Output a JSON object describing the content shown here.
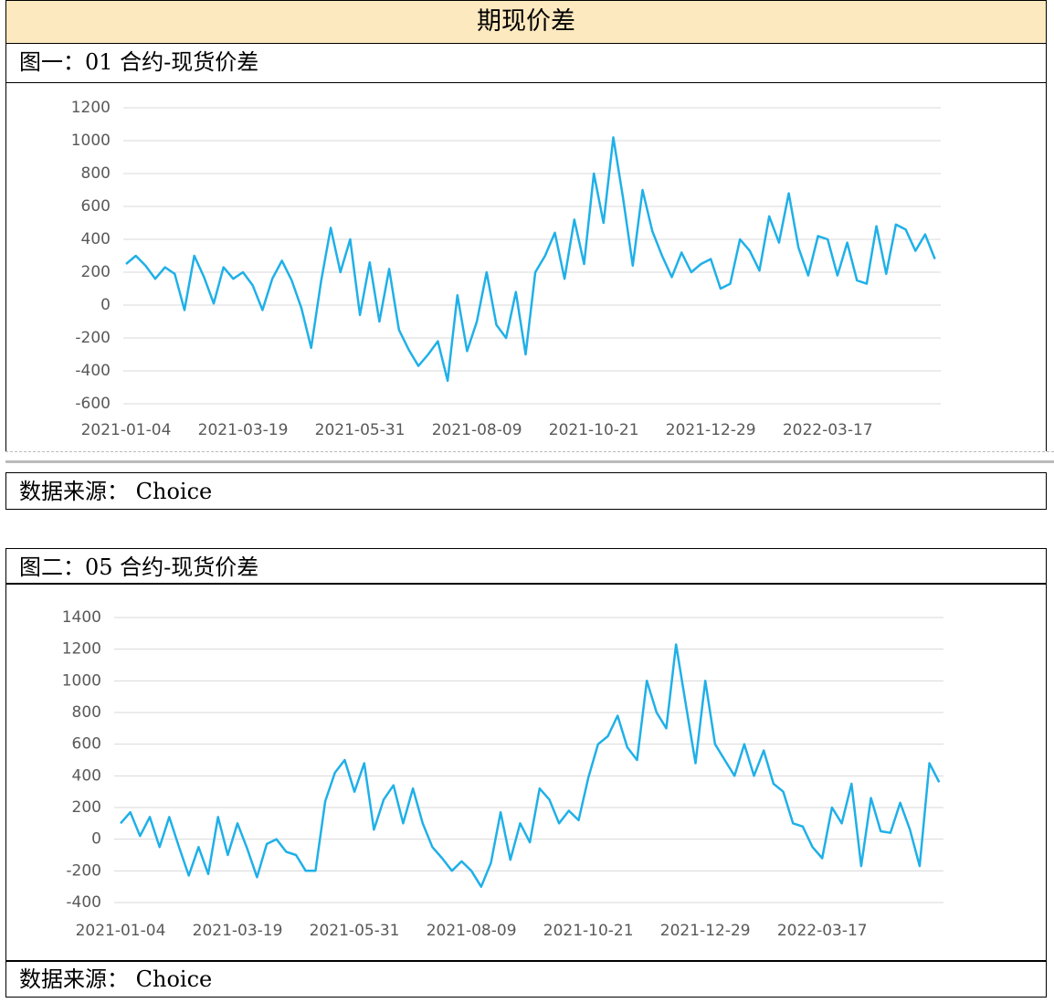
{
  "header": {
    "title": "期现价差"
  },
  "figures": [
    {
      "caption": "图一：01 合约-现货价差",
      "source": "数据来源： Choice"
    },
    {
      "caption": "图二：05 合约-现货价差",
      "source": "数据来源： Choice"
    }
  ],
  "chart_data": [
    {
      "type": "line",
      "color": "#1fb0e8",
      "grid": true,
      "ylim": [
        -600,
        1200
      ],
      "yticks": [
        -600,
        -400,
        -200,
        0,
        200,
        400,
        600,
        800,
        1000,
        1200
      ],
      "categories": [
        "2021-01-04",
        null,
        null,
        null,
        null,
        null,
        null,
        null,
        null,
        null,
        null,
        null,
        "2021-03-19",
        null,
        null,
        null,
        null,
        null,
        null,
        null,
        null,
        null,
        null,
        null,
        "2021-05-31",
        null,
        null,
        null,
        null,
        null,
        null,
        null,
        null,
        null,
        null,
        null,
        "2021-08-09",
        null,
        null,
        null,
        null,
        null,
        null,
        null,
        null,
        null,
        null,
        null,
        "2021-10-21",
        null,
        null,
        null,
        null,
        null,
        null,
        null,
        null,
        null,
        null,
        null,
        "2021-12-29",
        null,
        null,
        null,
        null,
        null,
        null,
        null,
        null,
        null,
        null,
        null,
        "2022-03-17",
        null,
        null,
        null,
        null,
        null,
        null,
        null,
        null,
        null,
        null,
        null
      ],
      "series": [
        {
          "values": [
            250,
            300,
            240,
            160,
            230,
            190,
            -30,
            300,
            170,
            10,
            230,
            160,
            200,
            120,
            -30,
            160,
            270,
            150,
            -20,
            -260,
            140,
            470,
            200,
            400,
            -60,
            260,
            -100,
            220,
            -150,
            -270,
            -370,
            -300,
            -220,
            -460,
            60,
            -280,
            -100,
            200,
            -120,
            -200,
            80,
            -300,
            200,
            300,
            440,
            160,
            520,
            250,
            800,
            500,
            1020,
            650,
            240,
            700,
            450,
            300,
            170,
            320,
            200,
            250,
            280,
            100,
            130,
            400,
            330,
            210,
            540,
            380,
            680,
            350,
            180,
            420,
            400,
            180,
            380,
            150,
            130,
            480,
            190,
            490,
            460,
            330,
            430,
            280
          ]
        }
      ]
    },
    {
      "type": "line",
      "color": "#1fb0e8",
      "grid": true,
      "ylim": [
        -400,
        1400
      ],
      "yticks": [
        -400,
        -200,
        0,
        200,
        400,
        600,
        800,
        1000,
        1200,
        1400
      ],
      "categories": [
        "2021-01-04",
        null,
        null,
        null,
        null,
        null,
        null,
        null,
        null,
        null,
        null,
        null,
        "2021-03-19",
        null,
        null,
        null,
        null,
        null,
        null,
        null,
        null,
        null,
        null,
        null,
        "2021-05-31",
        null,
        null,
        null,
        null,
        null,
        null,
        null,
        null,
        null,
        null,
        null,
        "2021-08-09",
        null,
        null,
        null,
        null,
        null,
        null,
        null,
        null,
        null,
        null,
        null,
        "2021-10-21",
        null,
        null,
        null,
        null,
        null,
        null,
        null,
        null,
        null,
        null,
        null,
        "2021-12-29",
        null,
        null,
        null,
        null,
        null,
        null,
        null,
        null,
        null,
        null,
        null,
        "2022-03-17",
        null,
        null,
        null,
        null,
        null,
        null,
        null,
        null,
        null,
        null,
        null,
        null
      ],
      "series": [
        {
          "values": [
            100,
            170,
            20,
            140,
            -50,
            140,
            -50,
            -230,
            -50,
            -220,
            140,
            -100,
            100,
            -60,
            -240,
            -30,
            0,
            -80,
            -100,
            -200,
            -200,
            240,
            420,
            500,
            300,
            480,
            60,
            250,
            340,
            100,
            320,
            100,
            -50,
            -120,
            -200,
            -140,
            -200,
            -300,
            -150,
            170,
            -130,
            100,
            -20,
            320,
            250,
            100,
            180,
            120,
            390,
            600,
            650,
            780,
            580,
            500,
            1000,
            800,
            700,
            1230,
            850,
            480,
            1000,
            600,
            500,
            400,
            600,
            400,
            560,
            350,
            300,
            100,
            80,
            -50,
            -120,
            200,
            100,
            350,
            -170,
            260,
            50,
            40,
            230,
            60,
            -170,
            480,
            360
          ]
        }
      ]
    }
  ]
}
